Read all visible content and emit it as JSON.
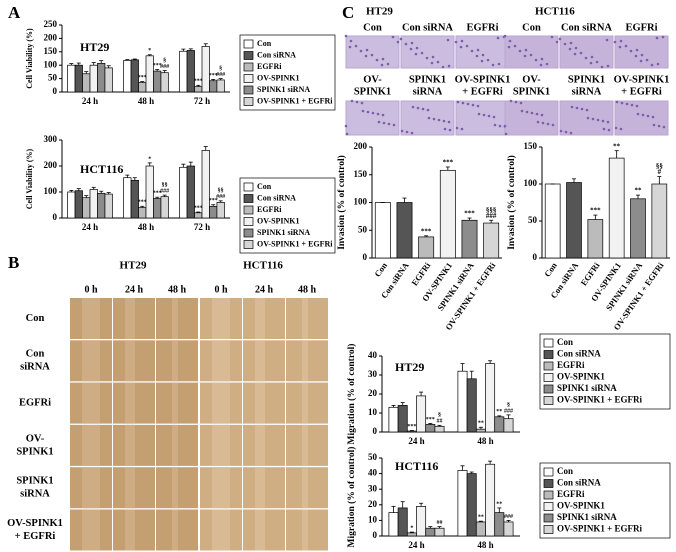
{
  "panel_labels": [
    "A",
    "B",
    "C"
  ],
  "invasion_images": [
    {
      "cell_line": "HT29",
      "labels": [
        [
          "Con"
        ],
        [
          "Con siRNA"
        ],
        [
          "EGFRi"
        ],
        [
          "OV-",
          "SPINK1"
        ],
        [
          "SPINK1",
          "siRNA"
        ],
        [
          "OV-SPINK1",
          "+ EGFRi"
        ]
      ]
    },
    {
      "cell_line": "HCT116",
      "labels": [
        [
          "Con"
        ],
        [
          "Con siRNA"
        ],
        [
          "EGFRi"
        ],
        [
          "OV-",
          "SPINK1"
        ],
        [
          "SPINK1",
          "siRNA"
        ],
        [
          "OV-SPINK1",
          "+ EGFRi"
        ]
      ]
    }
  ],
  "wound_images": {
    "columns": [
      {
        "cell_line": "HT29",
        "times": [
          "0 h",
          "24 h",
          "48 h"
        ]
      },
      {
        "cell_line": "HCT116",
        "times": [
          "0 h",
          "24 h",
          "48 h"
        ]
      }
    ],
    "rows": [
      [
        "Con"
      ],
      [
        "Con",
        "siRNA"
      ],
      [
        "EGFRi"
      ],
      [
        "OV-",
        "SPINK1"
      ],
      [
        "SPINK1",
        "siRNA"
      ],
      [
        "OV-SPINK1",
        "+ EGFRi"
      ]
    ]
  },
  "chart_data": [
    {
      "type": "bar",
      "title": "HT29",
      "ylabel": "Cell Viability (%)",
      "categories": [
        "24 h",
        "48 h",
        "72 h"
      ],
      "ylim": [
        0,
        250
      ],
      "yticks": [
        0,
        50,
        100,
        150,
        200,
        250
      ],
      "legend": true,
      "series": [
        {
          "name": "Con",
          "color": "#ffffff",
          "values": [
            100,
            118,
            152
          ],
          "errors": [
            6,
            3,
            8
          ],
          "annotations": [
            null,
            null,
            null
          ]
        },
        {
          "name": "Con siRNA",
          "color": "#555555",
          "values": [
            100,
            120,
            155
          ],
          "errors": [
            8,
            3,
            6
          ],
          "annotations": [
            null,
            null,
            null
          ]
        },
        {
          "name": "EGFRi",
          "color": "#bbbbbb",
          "values": [
            68,
            35,
            20
          ],
          "errors": [
            8,
            4,
            5
          ],
          "annotations": [
            null,
            [
              "***"
            ],
            [
              "***"
            ]
          ]
        },
        {
          "name": "OV-SPINK1",
          "color": "#f2f2f2",
          "values": [
            100,
            135,
            170
          ],
          "errors": [
            10,
            4,
            10
          ],
          "annotations": [
            null,
            [
              "*"
            ],
            null
          ]
        },
        {
          "name": "SPINK1 siRNA",
          "color": "#8c8c8c",
          "values": [
            107,
            78,
            42
          ],
          "errors": [
            10,
            6,
            5
          ],
          "annotations": [
            null,
            [
              "***"
            ],
            [
              "***"
            ]
          ]
        },
        {
          "name": "OV-SPINK1 + EGFRi",
          "color": "#d6d6d6",
          "values": [
            90,
            72,
            45
          ],
          "errors": [
            8,
            8,
            5
          ],
          "annotations": [
            null,
            [
              "§",
              "###"
            ],
            [
              "§",
              "###"
            ]
          ]
        }
      ]
    },
    {
      "type": "bar",
      "title": "HCT116",
      "ylabel": "Cell Viability (%)",
      "categories": [
        "24 h",
        "48 h",
        "72 h"
      ],
      "ylim": [
        0,
        300
      ],
      "yticks": [
        0,
        100,
        200,
        300
      ],
      "legend": true,
      "series": [
        {
          "name": "Con",
          "color": "#ffffff",
          "values": [
            100,
            155,
            195
          ],
          "errors": [
            6,
            10,
            12
          ],
          "annotations": [
            null,
            null,
            null
          ]
        },
        {
          "name": "Con siRNA",
          "color": "#555555",
          "values": [
            105,
            145,
            200
          ],
          "errors": [
            8,
            10,
            15
          ],
          "annotations": [
            null,
            null,
            null
          ]
        },
        {
          "name": "EGFRi",
          "color": "#bbbbbb",
          "values": [
            78,
            40,
            20
          ],
          "errors": [
            8,
            5,
            3
          ],
          "annotations": [
            null,
            [
              "***"
            ],
            [
              "***"
            ]
          ]
        },
        {
          "name": "OV-SPINK1",
          "color": "#f2f2f2",
          "values": [
            110,
            200,
            260
          ],
          "errors": [
            8,
            12,
            15
          ],
          "annotations": [
            null,
            [
              "*"
            ],
            null
          ]
        },
        {
          "name": "SPINK1 siRNA",
          "color": "#8c8c8c",
          "values": [
            95,
            75,
            45
          ],
          "errors": [
            8,
            5,
            6
          ],
          "annotations": [
            null,
            [
              "***"
            ],
            [
              "***"
            ]
          ]
        },
        {
          "name": "OV-SPINK1 + EGFRi",
          "color": "#d6d6d6",
          "values": [
            92,
            82,
            60
          ],
          "errors": [
            6,
            6,
            6
          ],
          "annotations": [
            null,
            [
              "§§",
              "###"
            ],
            [
              "§§",
              "###"
            ]
          ]
        }
      ]
    },
    {
      "type": "bar_single",
      "ylabel": "Invasion (% of control)",
      "categories": [
        "Con",
        "Con siRNA",
        "EGFRi",
        "OV-SPINK1",
        "SPINK1 siRNA",
        "OV-SPINK1 + EGFRi"
      ],
      "ylim": [
        0,
        200
      ],
      "yticks": [
        0,
        50,
        100,
        150,
        200
      ],
      "colors": [
        "#ffffff",
        "#555555",
        "#bbbbbb",
        "#f2f2f2",
        "#8c8c8c",
        "#d6d6d6"
      ],
      "values": [
        100,
        100,
        38,
        158,
        68,
        63
      ],
      "errors": [
        0,
        8,
        2,
        6,
        4,
        5
      ],
      "annotations": [
        null,
        null,
        [
          "***"
        ],
        [
          "***"
        ],
        [
          "***"
        ],
        [
          "§§§",
          "###"
        ]
      ]
    },
    {
      "type": "bar_single",
      "ylabel": "Invasion (% of control)",
      "categories": [
        "Con",
        "Con siRNA",
        "EGFRi",
        "OV-SPINK1",
        "SPINK1 siRNA",
        "OV-SPINK1 + EGFRi"
      ],
      "ylim": [
        0,
        150
      ],
      "yticks": [
        0,
        50,
        100,
        150
      ],
      "colors": [
        "#ffffff",
        "#555555",
        "#bbbbbb",
        "#f2f2f2",
        "#8c8c8c",
        "#d6d6d6"
      ],
      "values": [
        100,
        102,
        52,
        135,
        80,
        100
      ],
      "errors": [
        0,
        5,
        6,
        10,
        5,
        10
      ],
      "annotations": [
        null,
        null,
        [
          "***"
        ],
        [
          "**"
        ],
        [
          "**"
        ],
        [
          "§§",
          "#"
        ]
      ]
    },
    {
      "type": "bar",
      "title": "HT29",
      "ylabel": "Migration (% of control)",
      "categories": [
        "24 h",
        "48 h"
      ],
      "ylim": [
        0,
        40
      ],
      "yticks": [
        0,
        10,
        20,
        30,
        40
      ],
      "legend": true,
      "series": [
        {
          "name": "Con",
          "color": "#ffffff",
          "values": [
            13,
            32
          ],
          "errors": [
            1,
            4
          ],
          "annotations": [
            null,
            null
          ]
        },
        {
          "name": "Con siRNA",
          "color": "#555555",
          "values": [
            14,
            28
          ],
          "errors": [
            1.5,
            4
          ],
          "annotations": [
            null,
            null
          ]
        },
        {
          "name": "EGFRi",
          "color": "#bbbbbb",
          "values": [
            0.5,
            1.5
          ],
          "errors": [
            0.3,
            1
          ],
          "annotations": [
            [
              "***"
            ],
            [
              "**"
            ]
          ]
        },
        {
          "name": "OV-SPINK1",
          "color": "#f2f2f2",
          "values": [
            19,
            36
          ],
          "errors": [
            2,
            1.5
          ],
          "annotations": [
            null,
            null
          ]
        },
        {
          "name": "SPINK1 siRNA",
          "color": "#8c8c8c",
          "values": [
            4,
            8
          ],
          "errors": [
            0.5,
            0.5
          ],
          "annotations": [
            [
              "***"
            ],
            [
              "**"
            ]
          ]
        },
        {
          "name": "OV-SPINK1 + EGFRi",
          "color": "#d6d6d6",
          "values": [
            3,
            7
          ],
          "errors": [
            0.5,
            2
          ],
          "annotations": [
            [
              "§",
              "##"
            ],
            [
              "§",
              "###"
            ]
          ]
        }
      ]
    },
    {
      "type": "bar",
      "title": "HCT116",
      "ylabel": "Migration (% of control)",
      "categories": [
        "24 h",
        "48 h"
      ],
      "ylim": [
        0,
        50
      ],
      "yticks": [
        0,
        10,
        20,
        30,
        40,
        50
      ],
      "legend": true,
      "series": [
        {
          "name": "Con",
          "color": "#ffffff",
          "values": [
            15,
            42
          ],
          "errors": [
            4,
            3
          ],
          "annotations": [
            null,
            null
          ]
        },
        {
          "name": "Con siRNA",
          "color": "#555555",
          "values": [
            18,
            40
          ],
          "errors": [
            4,
            1
          ],
          "annotations": [
            null,
            null
          ]
        },
        {
          "name": "EGFRi",
          "color": "#bbbbbb",
          "values": [
            2,
            9
          ],
          "errors": [
            0.5,
            0.5
          ],
          "annotations": [
            [
              "*"
            ],
            [
              "**"
            ]
          ]
        },
        {
          "name": "OV-SPINK1",
          "color": "#f2f2f2",
          "values": [
            19,
            46
          ],
          "errors": [
            2,
            2
          ],
          "annotations": [
            null,
            null
          ]
        },
        {
          "name": "SPINK1 siRNA",
          "color": "#8c8c8c",
          "values": [
            5,
            15
          ],
          "errors": [
            1,
            3
          ],
          "annotations": [
            null,
            [
              "**"
            ]
          ]
        },
        {
          "name": "OV-SPINK1 + EGFRi",
          "color": "#d6d6d6",
          "values": [
            5,
            9
          ],
          "errors": [
            1,
            1
          ],
          "annotations": [
            [
              "##"
            ],
            [
              "###"
            ]
          ]
        }
      ]
    }
  ]
}
